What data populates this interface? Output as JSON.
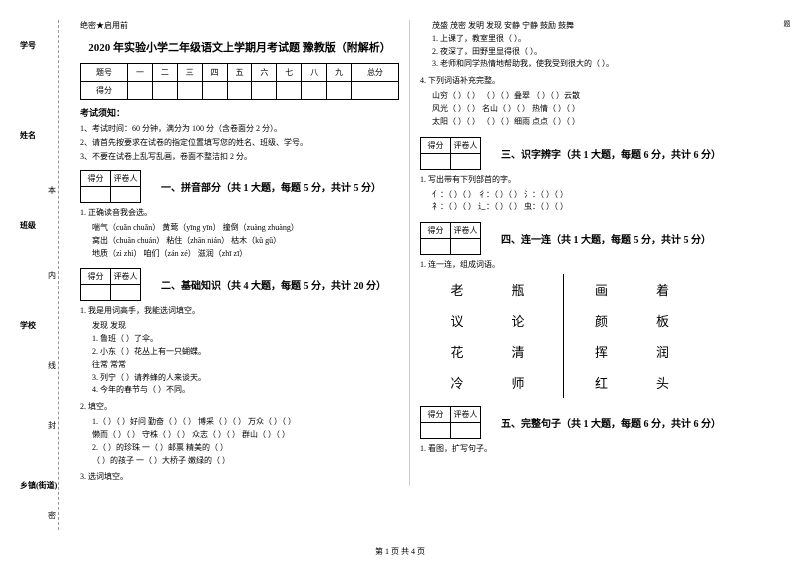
{
  "margin": {
    "labels": [
      "学号",
      "姓名",
      "班级",
      "学校",
      "乡镇(街道)"
    ],
    "sublabels": [
      "本",
      "内",
      "线",
      "封",
      "密"
    ],
    "dots_label": "题"
  },
  "header": {
    "secret": "绝密★启用前",
    "title": "2020 年实验小学二年级语文上学期月考试题 豫教版（附解析）"
  },
  "score_table": {
    "row1": [
      "题号",
      "一",
      "二",
      "三",
      "四",
      "五",
      "六",
      "七",
      "八",
      "九",
      "总分"
    ],
    "row2_label": "得分"
  },
  "notice": {
    "title": "考试须知：",
    "items": [
      "1、考试时间：60 分钟，满分为 100 分（含卷面分 2 分）。",
      "2、请首先按要求在试卷的指定位置填写您的姓名、班级、学号。",
      "3、不要在试卷上乱写乱画，卷面不整洁扣 2 分。"
    ]
  },
  "small_table": {
    "h1": "得分",
    "h2": "评卷人"
  },
  "sections": {
    "s1": {
      "title": "一、拼音部分（共 1 大题，每题 5 分，共计 5 分）",
      "q1": "1. 正确读音我会选。",
      "lines": [
        "喘气（cuǎn  chuǎn）   黄莺（yīng  yīn）    撞倒（zuàng  zhuàng）",
        "窝出（chuān  chuán） 粘住（zhān  nián）   枯木（kǔ  gǔ）",
        "地质（zì    zhì）    咱们（zán  zé）     滋润（zhī  zī）"
      ]
    },
    "s2": {
      "title": "二、基础知识（共 4 大题，每题 5 分，共计 20 分）",
      "q1": "1. 我是用词高手，我能选词填空。",
      "q1_line": "发现    发现",
      "q1_items": [
        "1. 鲁班（      ）了伞。",
        "2. 小东（      ）花丛上有一只蝴蝶。",
        "   往常    常常",
        "3. 列宁（      ）请养蜂的人来谈天。",
        "4. 今年的春节与（      ）不同。"
      ],
      "q2": "2. 填空。",
      "q2_lines": [
        "1.（   ）（   ）好问   勤奋（   ）（   ）   博采（   ）（   ）   万众（   ）（   ）",
        "   懒而（   ）（   ）   守株（   ）（   ）   众志（   ）（   ）   群山（   ）（   ）",
        "2.（      ）的珍珠    一（   ）邮票    精美的（      ）",
        "  （      ）的孩子    一（   ）大桥子  嫩绿的（      ）"
      ],
      "q3": "3. 选词填空。"
    },
    "right_top": {
      "line0": "茂盛   茂密   发明   发现   安静   宁静   鼓励   鼓舞",
      "items": [
        "1. 上课了，教室里很（        ）。",
        "2. 夜深了，田野里显得很（        ）。",
        "3. 老师和同学热情地帮助我，使我受到很大的（        ）。"
      ],
      "q4": "4. 下列词语补充完整。",
      "q4_lines": [
        "山穷（   ）（   ）         （   ）（   ）叠翠         （   ）（   ）云散",
        "风光（   ）（   ）    名山（   ）（   ）              热情（   ）（   ）",
        "太阳（   ）（   ）         （   ）（   ）细雨    点点（   ）（   ）"
      ]
    },
    "s3": {
      "title": "三、识字辨字（共 1 大题，每题 6 分，共计 6 分）",
      "q1": "1. 写出带有下列部首的字。",
      "line": "亻：（      ）（      ）   彳：（      ）（      ）   氵：（      ）（      ）\n礻：（      ）（      ）   辶：（      ）（      ）   虫：（      ）（      ）"
    },
    "s4": {
      "title": "四、连一连（共 1 大题，每题 5 分，共计 5 分）",
      "q1": "1. 连一连，组成词语。",
      "left": [
        "老",
        "议",
        "花",
        "冷"
      ],
      "left2": [
        "瓶",
        "论",
        "清",
        "师"
      ],
      "right": [
        "画",
        "颜",
        "挥",
        "红"
      ],
      "right2": [
        "着",
        "板",
        "润",
        "头"
      ]
    },
    "s5": {
      "title": "五、完整句子（共 1 大题，每题 6 分，共计 6 分）",
      "q1": "1. 看图，扩写句子。"
    }
  },
  "footer": "第 1 页 共 4 页"
}
